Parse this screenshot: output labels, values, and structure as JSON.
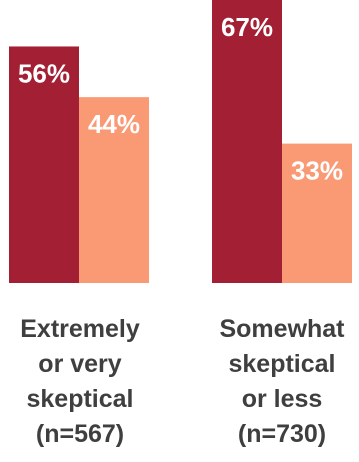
{
  "chart_data": {
    "type": "bar",
    "title": "",
    "xlabel": "",
    "ylabel": "",
    "ylim": [
      0,
      67
    ],
    "categories": [
      {
        "lines": [
          "Extremely",
          "or very",
          "skeptical",
          "(n=567)"
        ]
      },
      {
        "lines": [
          "Somewhat",
          "skeptical",
          "or less",
          "(n=730)"
        ]
      }
    ],
    "series": [
      {
        "values": [
          56,
          67
        ],
        "color": "#a31f34",
        "labels": [
          "56%",
          "67%"
        ]
      },
      {
        "values": [
          44,
          33
        ],
        "color": "#f99a75",
        "labels": [
          "44%",
          "33%"
        ]
      }
    ]
  }
}
